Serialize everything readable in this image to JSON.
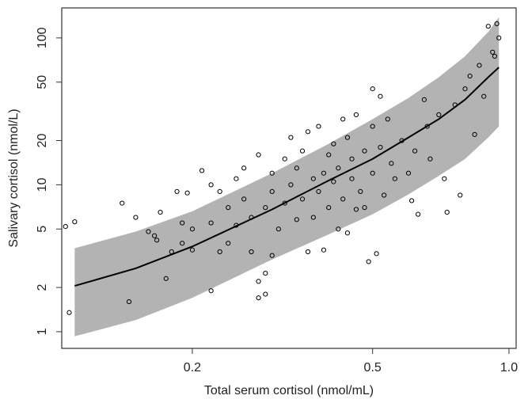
{
  "chart_data": {
    "type": "scatter",
    "x_label": "Total serum cortisol (nmol/mL)",
    "y_label": "Salivary cortisol (nmol/L)",
    "xscale": "log",
    "yscale": "log",
    "xlim": [
      0.103,
      1.037
    ],
    "ylim": [
      0.77,
      160
    ],
    "xticks": [
      0.2,
      0.5,
      {
        "value": 1,
        "label": "1.0"
      }
    ],
    "yticks": [
      1,
      2,
      5,
      10,
      20,
      50,
      100
    ],
    "point_color": "#000000",
    "line_color": "#000000",
    "band_color": "#b3b3b3",
    "x": [
      0.105,
      0.107,
      0.11,
      0.14,
      0.15,
      0.145,
      0.16,
      0.165,
      0.167,
      0.17,
      0.175,
      0.18,
      0.185,
      0.19,
      0.19,
      0.195,
      0.2,
      0.2,
      0.21,
      0.22,
      0.22,
      0.22,
      0.23,
      0.23,
      0.24,
      0.24,
      0.25,
      0.25,
      0.26,
      0.26,
      0.27,
      0.27,
      0.28,
      0.28,
      0.28,
      0.29,
      0.29,
      0.29,
      0.3,
      0.3,
      0.3,
      0.31,
      0.32,
      0.32,
      0.33,
      0.33,
      0.34,
      0.34,
      0.35,
      0.35,
      0.36,
      0.36,
      0.37,
      0.37,
      0.38,
      0.38,
      0.39,
      0.39,
      0.4,
      0.4,
      0.41,
      0.41,
      0.42,
      0.42,
      0.43,
      0.43,
      0.44,
      0.44,
      0.45,
      0.45,
      0.46,
      0.46,
      0.47,
      0.48,
      0.48,
      0.49,
      0.5,
      0.5,
      0.5,
      0.51,
      0.52,
      0.52,
      0.53,
      0.54,
      0.55,
      0.56,
      0.58,
      0.6,
      0.61,
      0.62,
      0.63,
      0.65,
      0.66,
      0.67,
      0.7,
      0.72,
      0.73,
      0.76,
      0.78,
      0.8,
      0.82,
      0.84,
      0.86,
      0.88,
      0.9,
      0.92,
      0.93,
      0.94,
      0.95
    ],
    "y": [
      5.2,
      1.35,
      5.6,
      7.5,
      6,
      1.6,
      4.8,
      4.5,
      4.2,
      6.5,
      2.3,
      3.5,
      9,
      4,
      5.5,
      8.8,
      5,
      3.6,
      12.5,
      1.9,
      5.5,
      10,
      3.5,
      9,
      4,
      7,
      11,
      5.3,
      8,
      13,
      3.5,
      6,
      1.7,
      2.2,
      16,
      1.8,
      2.5,
      7,
      3.3,
      12,
      9,
      5,
      15,
      7.5,
      21,
      10,
      5.8,
      13,
      17,
      8,
      3.5,
      23,
      11,
      6,
      25,
      9,
      3.6,
      12,
      16,
      7,
      19,
      10.5,
      5,
      13,
      28,
      8,
      4.7,
      21,
      11,
      15,
      30,
      6.8,
      9,
      17,
      7,
      3,
      45,
      25,
      12,
      3.4,
      40,
      18,
      8.5,
      28,
      14,
      11,
      20,
      12,
      7.8,
      17,
      6.3,
      38,
      25,
      15,
      30,
      11,
      6.5,
      35,
      8.5,
      45,
      55,
      22,
      65,
      40,
      120,
      80,
      75,
      125,
      100
    ],
    "curve": {
      "x": [
        0.11,
        0.15,
        0.2,
        0.3,
        0.4,
        0.5,
        0.6,
        0.7,
        0.8,
        0.9,
        0.95
      ],
      "values": [
        2.05,
        2.7,
        3.8,
        6.8,
        10.7,
        15,
        21,
        28,
        38,
        54,
        63
      ],
      "upper": [
        3.7,
        4.8,
        6.6,
        12,
        19,
        28,
        39,
        54,
        75,
        110,
        138
      ],
      "lower": [
        0.93,
        1.2,
        1.7,
        3.1,
        4.6,
        6.3,
        8.6,
        11.5,
        15,
        21,
        25
      ]
    }
  }
}
